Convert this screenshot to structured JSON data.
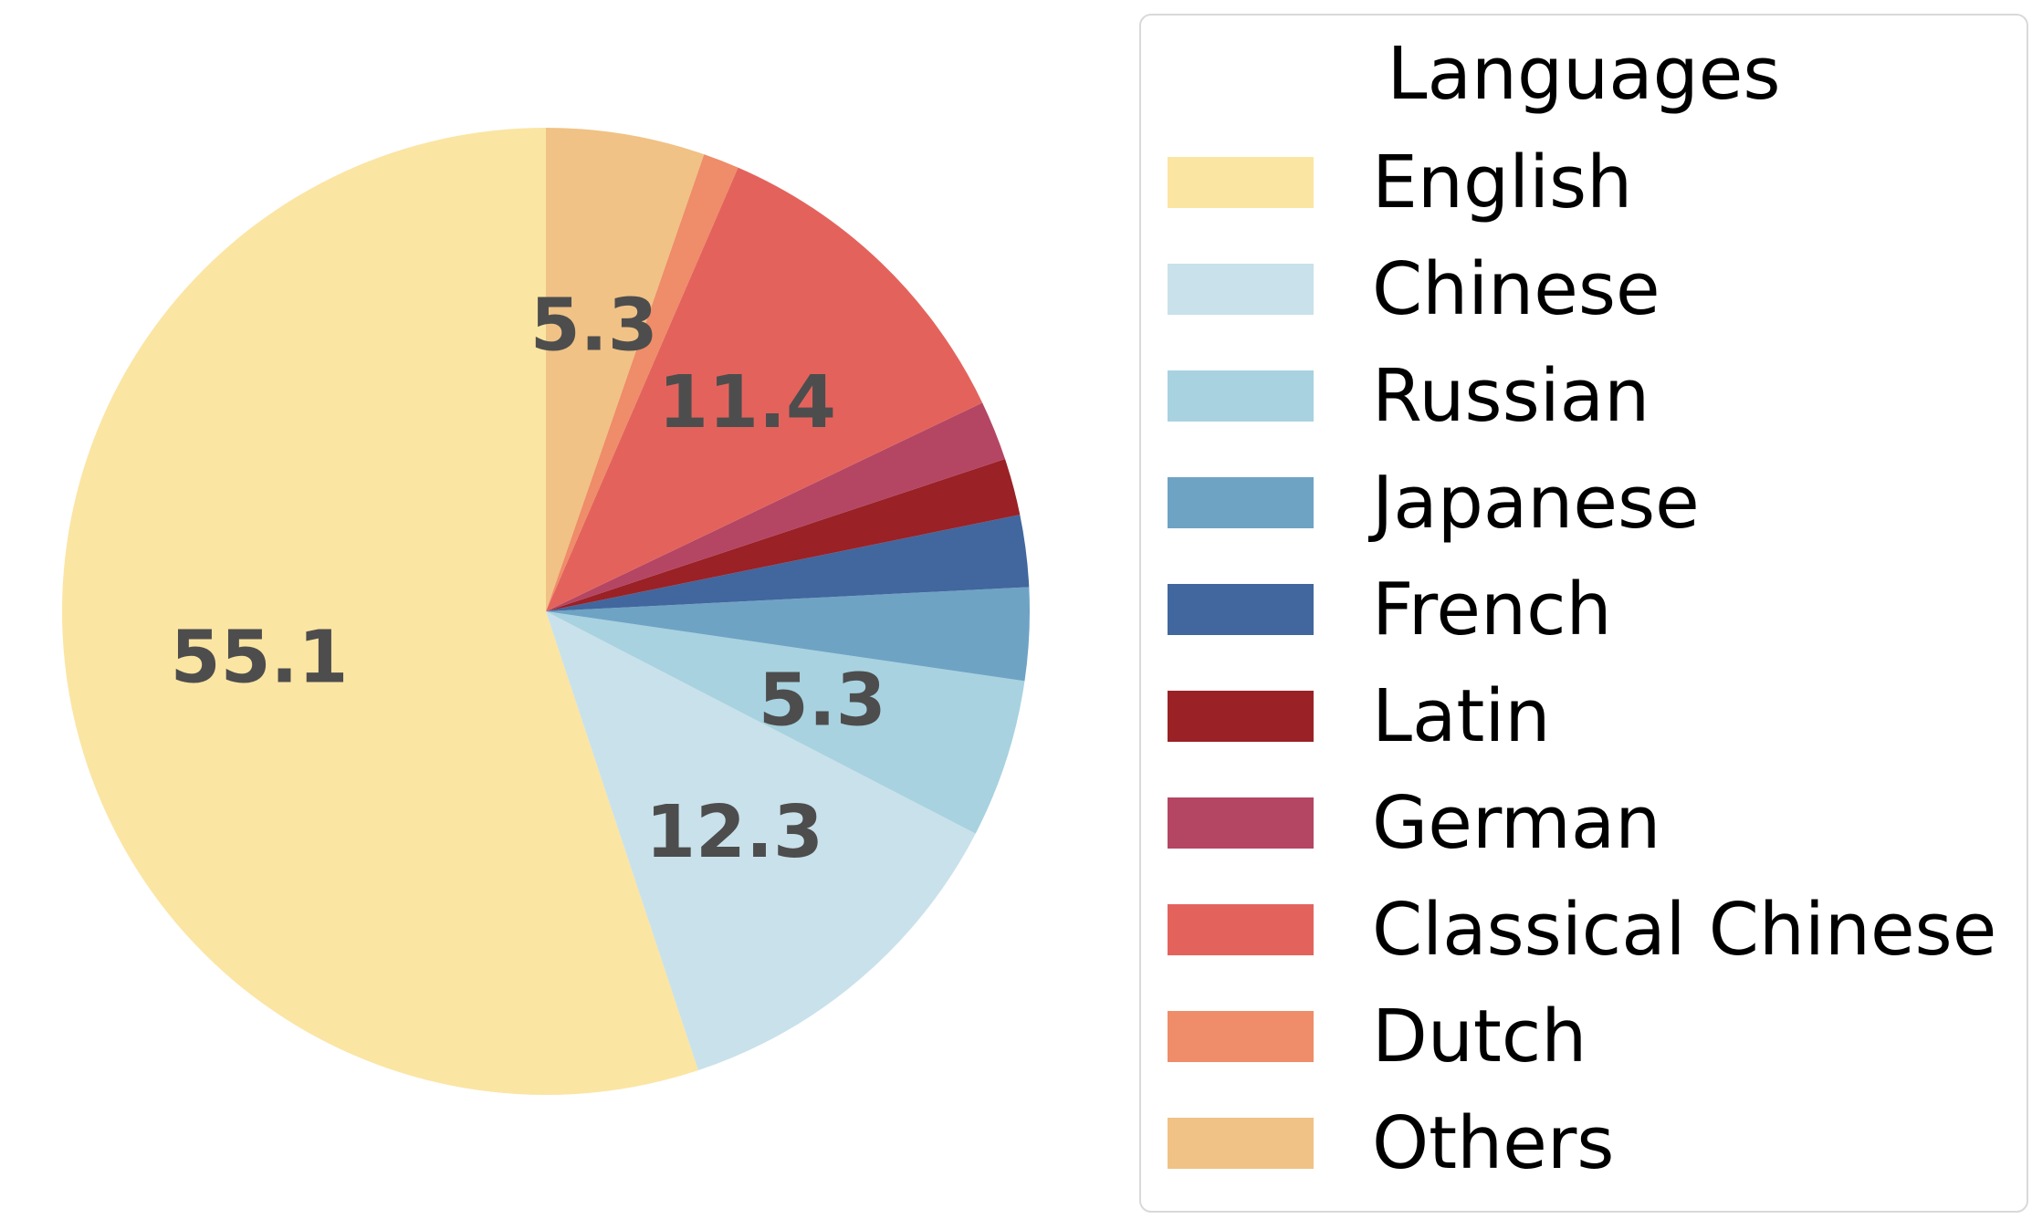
{
  "chart_data": {
    "type": "pie",
    "title": "",
    "legend": {
      "title": "Languages",
      "placement": "right"
    },
    "start_angle_deg": 90,
    "direction": "counterclockwise",
    "series": [
      {
        "name": "English",
        "value": 55.1,
        "color": "#fbe5a3",
        "label": "55.1"
      },
      {
        "name": "Chinese",
        "value": 12.3,
        "color": "#c9e1ea",
        "label": "12.3"
      },
      {
        "name": "Russian",
        "value": 5.3,
        "color": "#a8d2e0",
        "label": "5.3"
      },
      {
        "name": "Japanese",
        "value": 3.1,
        "color": "#6ea3c4",
        "label": ""
      },
      {
        "name": "French",
        "value": 2.4,
        "color": "#41679e",
        "label": ""
      },
      {
        "name": "Latin",
        "value": 1.9,
        "color": "#9a2126",
        "label": ""
      },
      {
        "name": "German",
        "value": 2.0,
        "color": "#b44663",
        "label": ""
      },
      {
        "name": "Classical Chinese",
        "value": 11.4,
        "color": "#e3635c",
        "label": "11.4"
      },
      {
        "name": "Dutch",
        "value": 1.2,
        "color": "#ef8c69",
        "label": ""
      },
      {
        "name": "Others",
        "value": 5.3,
        "color": "#f0c285",
        "label": "5.3"
      }
    ]
  }
}
